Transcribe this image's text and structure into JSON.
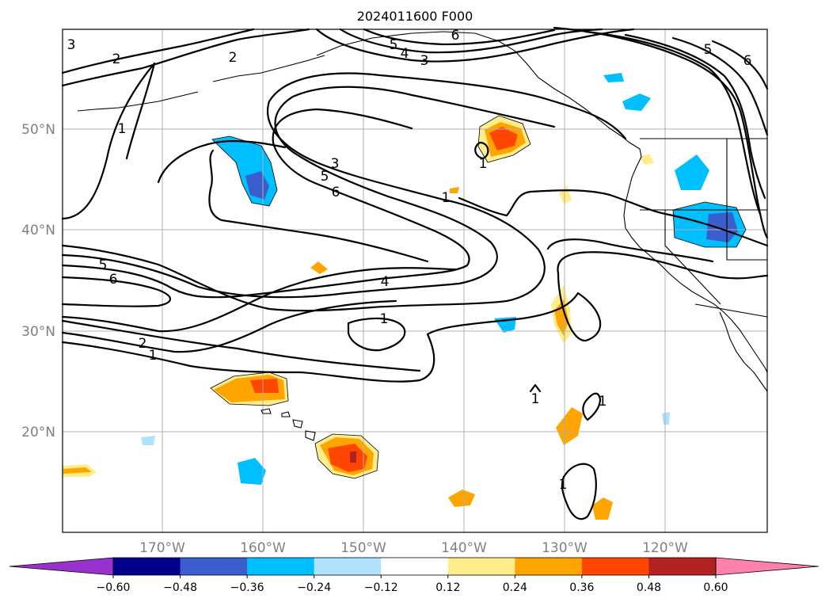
{
  "title": "2024011600 F000",
  "map": {
    "lat_labels": [
      "50°N",
      "40°N",
      "30°N",
      "20°N"
    ],
    "lon_labels": [
      "170°W",
      "160°W",
      "150°W",
      "140°W",
      "130°W",
      "120°W"
    ],
    "contour_labels": [
      "3",
      "2",
      "2",
      "5",
      "4",
      "3",
      "6",
      "5",
      "6",
      "1",
      "3",
      "5",
      "6",
      "1",
      "1",
      "5",
      "6",
      "4",
      "1",
      "2",
      "1",
      "1",
      "1",
      "1"
    ]
  },
  "colorbar": {
    "ticks": [
      "−0.60",
      "−0.48",
      "−0.36",
      "−0.24",
      "−0.12",
      "0.12",
      "0.24",
      "0.36",
      "0.48",
      "0.60"
    ],
    "colors": [
      "#9932cc",
      "#00008b",
      "#3a5fcd",
      "#00bfff",
      "#b0e2ff",
      "#ffffff",
      "#ffec8b",
      "#ffa500",
      "#ff4500",
      "#b22222",
      "#ff82ab"
    ]
  }
}
